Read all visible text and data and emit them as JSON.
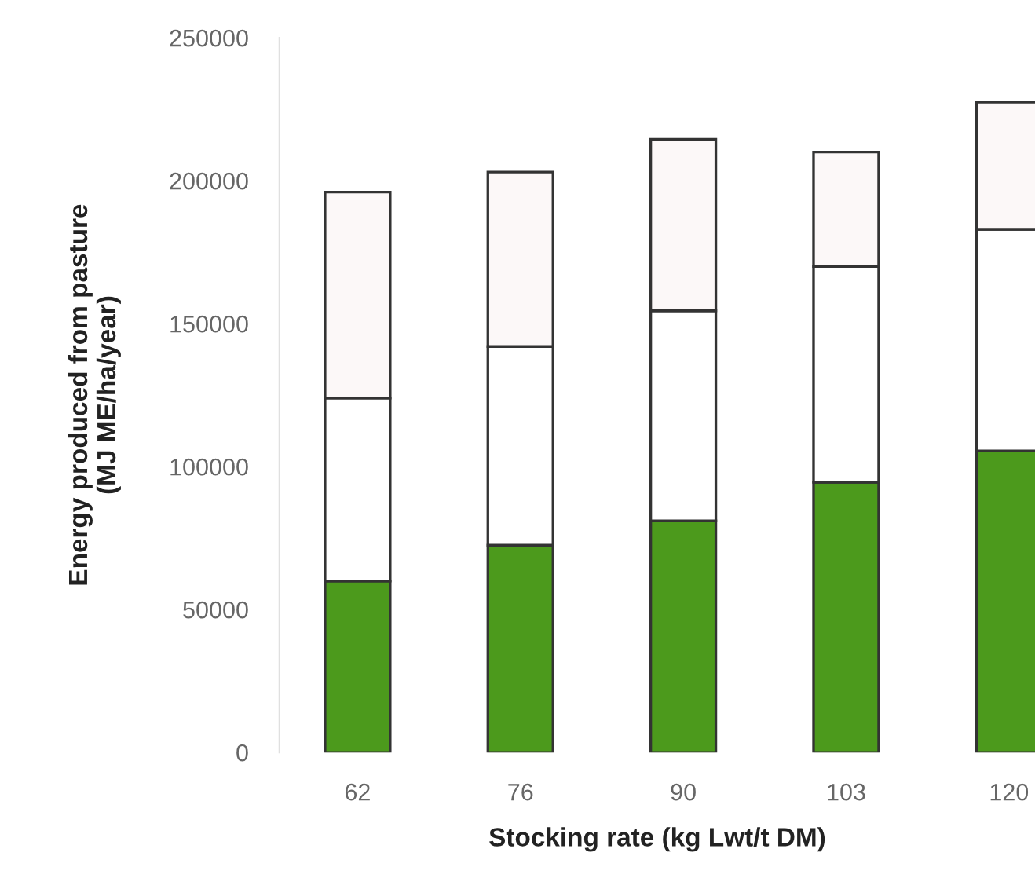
{
  "chart_data": {
    "type": "bar",
    "stacked": true,
    "xlabel": "Stocking rate (kg Lwt/t DM)",
    "ylabel": "Energy produced from pasture\n(MJ ME/ha/year)",
    "categories": [
      "62",
      "76",
      "90",
      "103",
      "120"
    ],
    "series": [
      {
        "color": "#4c9a1c",
        "values": [
          60000,
          72500,
          81000,
          94500,
          105500
        ]
      },
      {
        "color": "#ffffff",
        "values": [
          64000,
          69500,
          73500,
          75500,
          77500
        ]
      },
      {
        "color": "#fcf8f8",
        "values": [
          72000,
          61000,
          60000,
          40000,
          44500
        ]
      }
    ],
    "ylim": [
      0,
      250000
    ],
    "yticks": [
      0,
      50000,
      100000,
      150000,
      200000,
      250000
    ],
    "grid": false
  }
}
